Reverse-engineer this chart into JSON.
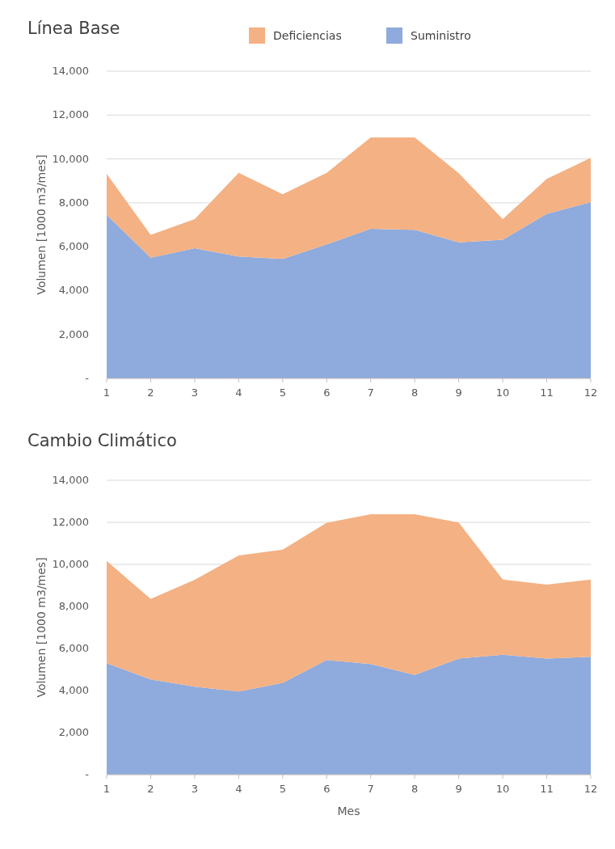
{
  "chart_data": [
    {
      "type": "area",
      "title": "Línea Base",
      "ylabel": "Volumen [1000 m3/mes]",
      "stacked": true,
      "x": [
        1,
        2,
        3,
        4,
        5,
        6,
        7,
        8,
        9,
        10,
        11,
        12
      ],
      "xlim": [
        1,
        12
      ],
      "xticks": [
        1,
        2,
        3,
        4,
        5,
        6,
        7,
        8,
        9,
        10,
        11,
        12
      ],
      "ylim": [
        0,
        14000
      ],
      "yticks": [
        {
          "value": 0,
          "label": "-"
        },
        {
          "value": 2000,
          "label": "2,000"
        },
        {
          "value": 4000,
          "label": "4,000"
        },
        {
          "value": 6000,
          "label": "6,000"
        },
        {
          "value": 8000,
          "label": "8,000"
        },
        {
          "value": 10000,
          "label": "10,000"
        },
        {
          "value": 12000,
          "label": "12,000"
        },
        {
          "value": 14000,
          "label": "14,000"
        }
      ],
      "grid": "y",
      "legend": "top",
      "series": [
        {
          "name": "Suministro",
          "color": "#8faadc",
          "values": [
            7450,
            5500,
            5930,
            5550,
            5440,
            6110,
            6820,
            6770,
            6200,
            6320,
            7500,
            8030
          ]
        },
        {
          "name": "Deficiencias",
          "color": "#f4b183",
          "values": [
            1870,
            1040,
            1330,
            3820,
            2950,
            3260,
            4160,
            4210,
            3150,
            940,
            1590,
            2020
          ]
        }
      ]
    },
    {
      "type": "area",
      "title": "Cambio Climático",
      "xlabel": "Mes",
      "ylabel": "Volumen [1000 m3/mes]",
      "stacked": true,
      "x": [
        1,
        2,
        3,
        4,
        5,
        6,
        7,
        8,
        9,
        10,
        11,
        12
      ],
      "xlim": [
        1,
        12
      ],
      "xticks": [
        1,
        2,
        3,
        4,
        5,
        6,
        7,
        8,
        9,
        10,
        11,
        12
      ],
      "ylim": [
        0,
        14000
      ],
      "yticks": [
        {
          "value": 0,
          "label": "-"
        },
        {
          "value": 2000,
          "label": "2,000"
        },
        {
          "value": 4000,
          "label": "4,000"
        },
        {
          "value": 6000,
          "label": "6,000"
        },
        {
          "value": 8000,
          "label": "8,000"
        },
        {
          "value": 10000,
          "label": "10,000"
        },
        {
          "value": 12000,
          "label": "12,000"
        },
        {
          "value": 14000,
          "label": "14,000"
        }
      ],
      "grid": "y",
      "legend": false,
      "series": [
        {
          "color": "#8faadc",
          "values": [
            5300,
            4530,
            4180,
            3950,
            4370,
            5450,
            5260,
            4740,
            5520,
            5700,
            5520,
            5610
          ]
        },
        {
          "color": "#f4b183",
          "values": [
            4860,
            3830,
            5090,
            6470,
            6330,
            6530,
            7120,
            7640,
            6470,
            3580,
            3520,
            3670
          ]
        }
      ]
    }
  ]
}
